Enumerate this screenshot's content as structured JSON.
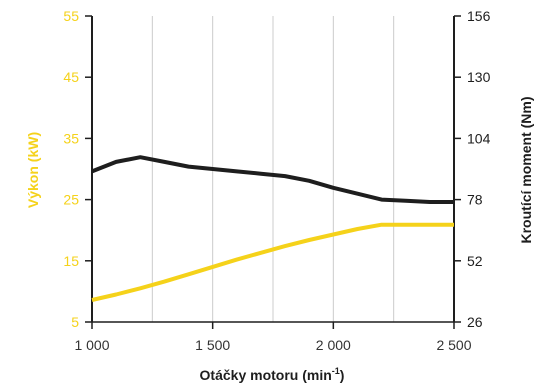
{
  "chart_data": {
    "type": "line",
    "xlabel": "Otáčky motoru (min",
    "xlabel_sup": "-1",
    "xlabel_suffix": ")",
    "y_left_label": "Výkon (kW)",
    "y_right_label": "Kroutící moment (Nm)",
    "x_ticks": [
      1000,
      1500,
      2000,
      2500
    ],
    "x_tick_labels": [
      "1 000",
      "1 500",
      "2 000",
      "2 500"
    ],
    "xlim": [
      1000,
      2500
    ],
    "y_left_ticks": [
      5,
      15,
      25,
      35,
      45,
      55
    ],
    "y_left_lim": [
      5,
      55
    ],
    "y_right_ticks": [
      26,
      52,
      78,
      104,
      130,
      156
    ],
    "y_right_lim": [
      26,
      156
    ],
    "grid": "vertical",
    "colors": {
      "power": "#f5d21a",
      "torque": "#1e1e1e",
      "grid": "#cccccc"
    },
    "series": [
      {
        "axis": "left",
        "color": "#f5d21a",
        "x": [
          1000,
          1100,
          1200,
          1300,
          1400,
          1500,
          1600,
          1700,
          1800,
          1900,
          2000,
          2100,
          2200,
          2300,
          2400,
          2500
        ],
        "values": [
          8.6,
          9.5,
          10.5,
          11.6,
          12.8,
          14.0,
          15.2,
          16.3,
          17.4,
          18.4,
          19.3,
          20.2,
          20.9,
          20.9,
          20.9,
          20.9
        ]
      },
      {
        "axis": "right",
        "color": "#1e1e1e",
        "x": [
          1000,
          1100,
          1200,
          1300,
          1400,
          1500,
          1600,
          1700,
          1800,
          1900,
          2000,
          2100,
          2200,
          2300,
          2400,
          2500
        ],
        "values": [
          90,
          94,
          96,
          94,
          92,
          91,
          90,
          89,
          88,
          86,
          83,
          80.5,
          78,
          77.5,
          77,
          77
        ]
      }
    ]
  }
}
